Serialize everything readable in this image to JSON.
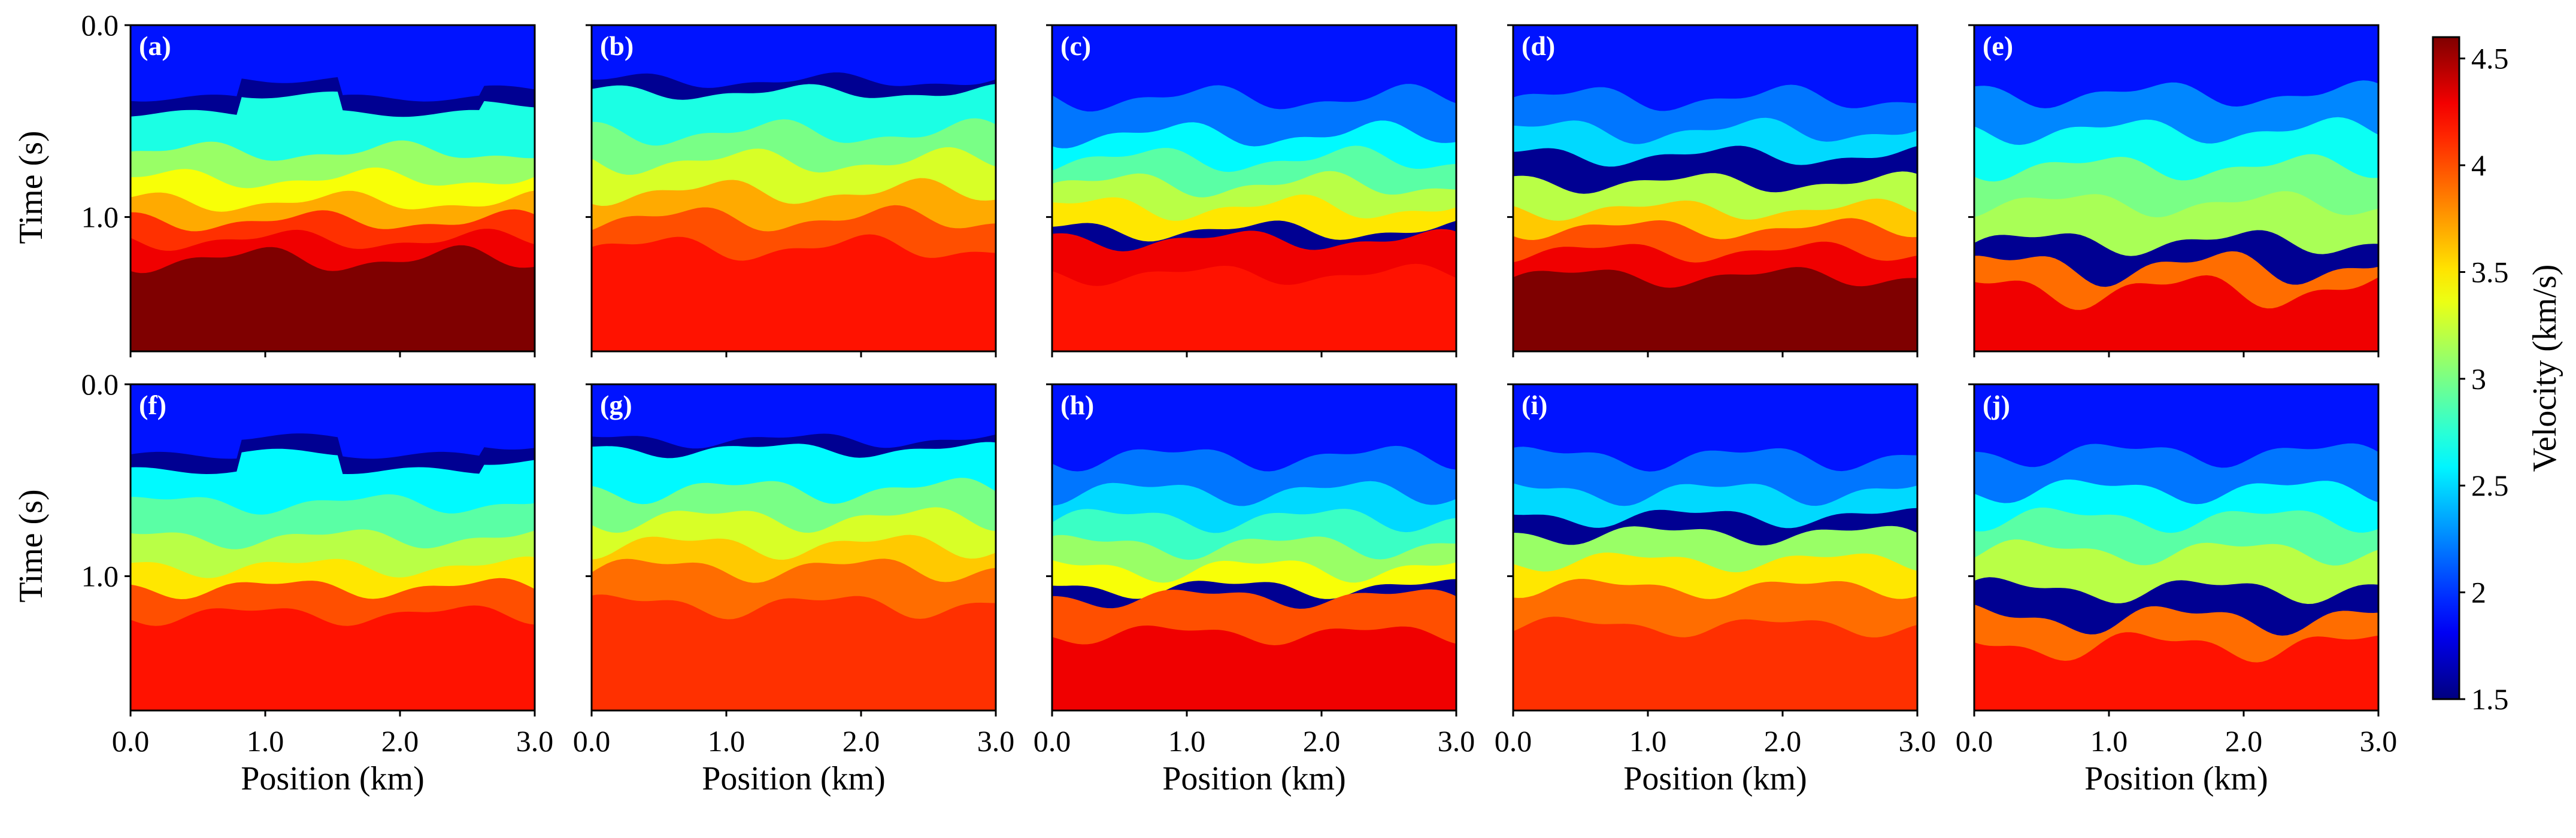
{
  "chart_data": {
    "type": "heatmap",
    "description_units": "velocity (km/s) vs position (km) and time (s)",
    "panels": [
      {
        "label": "(a)",
        "row": 0,
        "col": 0,
        "layers": [
          {
            "v": 1.9,
            "top": 0.0,
            "amp": 0.0,
            "pattern": "flat"
          },
          {
            "v": 1.55,
            "top": 0.38,
            "amp": 0.06,
            "pattern": "block"
          },
          {
            "v": 2.7,
            "top": 0.46,
            "amp": 0.06,
            "pattern": "block"
          },
          {
            "v": 3.1,
            "top": 0.66,
            "amp": 0.04,
            "pattern": "wave"
          },
          {
            "v": 3.4,
            "top": 0.8,
            "amp": 0.04,
            "pattern": "wave"
          },
          {
            "v": 3.7,
            "top": 0.92,
            "amp": 0.04,
            "pattern": "wave"
          },
          {
            "v": 4.1,
            "top": 1.02,
            "amp": 0.04,
            "pattern": "wave"
          },
          {
            "v": 4.3,
            "top": 1.12,
            "amp": 0.04,
            "pattern": "wave"
          },
          {
            "v": 4.6,
            "top": 1.22,
            "amp": 0.05,
            "pattern": "wave"
          }
        ]
      },
      {
        "label": "(b)",
        "row": 0,
        "col": 1,
        "layers": [
          {
            "v": 1.9,
            "top": 0.0,
            "amp": 0.0,
            "pattern": "flat"
          },
          {
            "v": 1.55,
            "top": 0.29,
            "amp": 0.03,
            "pattern": "wave"
          },
          {
            "v": 2.7,
            "top": 0.35,
            "amp": 0.03,
            "pattern": "wave"
          },
          {
            "v": 3.0,
            "top": 0.56,
            "amp": 0.05,
            "pattern": "wave"
          },
          {
            "v": 3.3,
            "top": 0.71,
            "amp": 0.05,
            "pattern": "wave"
          },
          {
            "v": 3.7,
            "top": 0.87,
            "amp": 0.05,
            "pattern": "wave"
          },
          {
            "v": 4.0,
            "top": 1.01,
            "amp": 0.05,
            "pattern": "wave"
          },
          {
            "v": 4.2,
            "top": 1.16,
            "amp": 0.05,
            "pattern": "wave"
          }
        ]
      },
      {
        "label": "(c)",
        "row": 0,
        "col": 2,
        "layers": [
          {
            "v": 1.9,
            "top": 0.0,
            "amp": 0.0,
            "pattern": "flat"
          },
          {
            "v": 2.2,
            "top": 0.38,
            "amp": 0.05,
            "pattern": "wave"
          },
          {
            "v": 2.6,
            "top": 0.57,
            "amp": 0.05,
            "pattern": "wave"
          },
          {
            "v": 2.9,
            "top": 0.7,
            "amp": 0.05,
            "pattern": "wave"
          },
          {
            "v": 3.2,
            "top": 0.83,
            "amp": 0.05,
            "pattern": "wave"
          },
          {
            "v": 3.5,
            "top": 0.95,
            "amp": 0.05,
            "pattern": "wave"
          },
          {
            "v": 1.55,
            "top": 1.07,
            "amp": 0.04,
            "pattern": "wave"
          },
          {
            "v": 4.3,
            "top": 1.12,
            "amp": 0.04,
            "pattern": "wave"
          },
          {
            "v": 4.2,
            "top": 1.3,
            "amp": 0.04,
            "pattern": "wave"
          }
        ]
      },
      {
        "label": "(d)",
        "row": 0,
        "col": 3,
        "layers": [
          {
            "v": 1.9,
            "top": 0.0,
            "amp": 0.0,
            "pattern": "flat"
          },
          {
            "v": 2.2,
            "top": 0.38,
            "amp": 0.05,
            "pattern": "wave"
          },
          {
            "v": 2.5,
            "top": 0.55,
            "amp": 0.05,
            "pattern": "wave"
          },
          {
            "v": 1.55,
            "top": 0.68,
            "amp": 0.04,
            "pattern": "wave"
          },
          {
            "v": 3.2,
            "top": 0.82,
            "amp": 0.04,
            "pattern": "wave"
          },
          {
            "v": 3.6,
            "top": 0.96,
            "amp": 0.04,
            "pattern": "wave"
          },
          {
            "v": 4.0,
            "top": 1.06,
            "amp": 0.04,
            "pattern": "wave"
          },
          {
            "v": 4.3,
            "top": 1.18,
            "amp": 0.04,
            "pattern": "wave"
          },
          {
            "v": 4.6,
            "top": 1.31,
            "amp": 0.04,
            "pattern": "wave"
          }
        ]
      },
      {
        "label": "(e)",
        "row": 0,
        "col": 4,
        "layers": [
          {
            "v": 1.9,
            "top": 0.0,
            "amp": 0.0,
            "pattern": "flat"
          },
          {
            "v": 2.25,
            "top": 0.36,
            "amp": 0.05,
            "pattern": "wave"
          },
          {
            "v": 2.65,
            "top": 0.55,
            "amp": 0.05,
            "pattern": "wave"
          },
          {
            "v": 3.0,
            "top": 0.74,
            "amp": 0.05,
            "pattern": "wave"
          },
          {
            "v": 3.15,
            "top": 0.93,
            "amp": 0.05,
            "pattern": "wave"
          },
          {
            "v": 1.55,
            "top": 1.13,
            "amp": 0.05,
            "pattern": "wave"
          },
          {
            "v": 3.9,
            "top": 1.26,
            "amp": 0.07,
            "pattern": "wave"
          },
          {
            "v": 4.3,
            "top": 1.38,
            "amp": 0.07,
            "pattern": "wave"
          }
        ]
      },
      {
        "label": "(f)",
        "row": 1,
        "col": 0,
        "layers": [
          {
            "v": 1.9,
            "top": 0.0,
            "amp": 0.0,
            "pattern": "flat"
          },
          {
            "v": 1.55,
            "top": 0.37,
            "amp": 0.06,
            "pattern": "block"
          },
          {
            "v": 2.6,
            "top": 0.45,
            "amp": 0.06,
            "pattern": "block"
          },
          {
            "v": 2.9,
            "top": 0.62,
            "amp": 0.04,
            "pattern": "wave"
          },
          {
            "v": 3.2,
            "top": 0.8,
            "amp": 0.04,
            "pattern": "wave"
          },
          {
            "v": 3.5,
            "top": 0.95,
            "amp": 0.04,
            "pattern": "wave"
          },
          {
            "v": 4.0,
            "top": 1.06,
            "amp": 0.04,
            "pattern": "wave"
          },
          {
            "v": 4.2,
            "top": 1.2,
            "amp": 0.04,
            "pattern": "wave"
          }
        ]
      },
      {
        "label": "(g)",
        "row": 1,
        "col": 1,
        "layers": [
          {
            "v": 1.9,
            "top": 0.0,
            "amp": 0.0,
            "pattern": "flat"
          },
          {
            "v": 1.55,
            "top": 0.29,
            "amp": 0.03,
            "pattern": "wave"
          },
          {
            "v": 2.6,
            "top": 0.34,
            "amp": 0.03,
            "pattern": "wave"
          },
          {
            "v": 3.0,
            "top": 0.55,
            "amp": 0.05,
            "pattern": "wave"
          },
          {
            "v": 3.3,
            "top": 0.7,
            "amp": 0.05,
            "pattern": "wave"
          },
          {
            "v": 3.6,
            "top": 0.84,
            "amp": 0.05,
            "pattern": "wave"
          },
          {
            "v": 3.9,
            "top": 0.96,
            "amp": 0.05,
            "pattern": "wave"
          },
          {
            "v": 4.1,
            "top": 1.15,
            "amp": 0.05,
            "pattern": "wave"
          }
        ]
      },
      {
        "label": "(h)",
        "row": 1,
        "col": 2,
        "layers": [
          {
            "v": 1.9,
            "top": 0.0,
            "amp": 0.0,
            "pattern": "flat"
          },
          {
            "v": 2.2,
            "top": 0.38,
            "amp": 0.05,
            "pattern": "wave"
          },
          {
            "v": 2.5,
            "top": 0.56,
            "amp": 0.05,
            "pattern": "wave"
          },
          {
            "v": 2.8,
            "top": 0.7,
            "amp": 0.05,
            "pattern": "wave"
          },
          {
            "v": 3.1,
            "top": 0.84,
            "amp": 0.05,
            "pattern": "wave"
          },
          {
            "v": 3.4,
            "top": 0.96,
            "amp": 0.05,
            "pattern": "wave"
          },
          {
            "v": 1.55,
            "top": 1.06,
            "amp": 0.04,
            "pattern": "wave"
          },
          {
            "v": 4.0,
            "top": 1.11,
            "amp": 0.04,
            "pattern": "wave"
          },
          {
            "v": 4.3,
            "top": 1.3,
            "amp": 0.04,
            "pattern": "wave"
          }
        ]
      },
      {
        "label": "(i)",
        "row": 1,
        "col": 3,
        "layers": [
          {
            "v": 1.9,
            "top": 0.0,
            "amp": 0.0,
            "pattern": "flat"
          },
          {
            "v": 2.2,
            "top": 0.38,
            "amp": 0.05,
            "pattern": "wave"
          },
          {
            "v": 2.5,
            "top": 0.56,
            "amp": 0.05,
            "pattern": "wave"
          },
          {
            "v": 1.55,
            "top": 0.69,
            "amp": 0.04,
            "pattern": "wave"
          },
          {
            "v": 3.1,
            "top": 0.78,
            "amp": 0.04,
            "pattern": "wave"
          },
          {
            "v": 3.5,
            "top": 0.92,
            "amp": 0.04,
            "pattern": "wave"
          },
          {
            "v": 3.9,
            "top": 1.06,
            "amp": 0.04,
            "pattern": "wave"
          },
          {
            "v": 4.1,
            "top": 1.26,
            "amp": 0.04,
            "pattern": "wave"
          }
        ]
      },
      {
        "label": "(j)",
        "row": 1,
        "col": 4,
        "layers": [
          {
            "v": 1.9,
            "top": 0.0,
            "amp": 0.0,
            "pattern": "flat"
          },
          {
            "v": 2.2,
            "top": 0.36,
            "amp": 0.05,
            "pattern": "wave"
          },
          {
            "v": 2.6,
            "top": 0.55,
            "amp": 0.05,
            "pattern": "wave"
          },
          {
            "v": 2.9,
            "top": 0.7,
            "amp": 0.05,
            "pattern": "wave"
          },
          {
            "v": 3.2,
            "top": 0.87,
            "amp": 0.05,
            "pattern": "wave"
          },
          {
            "v": 1.55,
            "top": 1.07,
            "amp": 0.05,
            "pattern": "wave"
          },
          {
            "v": 3.9,
            "top": 1.22,
            "amp": 0.06,
            "pattern": "wave"
          },
          {
            "v": 4.2,
            "top": 1.36,
            "amp": 0.06,
            "pattern": "wave"
          }
        ]
      }
    ],
    "x_range": [
      0.0,
      3.0
    ],
    "y_range": [
      0.0,
      1.7
    ],
    "x_ticks": [
      0.0,
      1.0,
      2.0,
      3.0
    ],
    "x_tick_labels": [
      "0.0",
      "1.0",
      "2.0",
      "3.0"
    ],
    "y_ticks": [
      0.0,
      1.0
    ],
    "y_tick_labels": [
      "0.0",
      "1.0"
    ],
    "xlabel": "Position (km)",
    "ylabel": "Time (s)",
    "colorbar": {
      "label": "Velocity (km/s)",
      "range": [
        1.5,
        4.6
      ],
      "ticks": [
        1.5,
        2.0,
        2.5,
        3.0,
        3.5,
        4.0,
        4.5
      ],
      "tick_labels": [
        "1.5",
        "2",
        "2.5",
        "3",
        "3.5",
        "4",
        "4.5"
      ],
      "colormap": "jet",
      "colormap_stops": [
        "#00007f",
        "#0000ff",
        "#00ffff",
        "#ffff00",
        "#ff0000",
        "#7f0000"
      ]
    }
  }
}
